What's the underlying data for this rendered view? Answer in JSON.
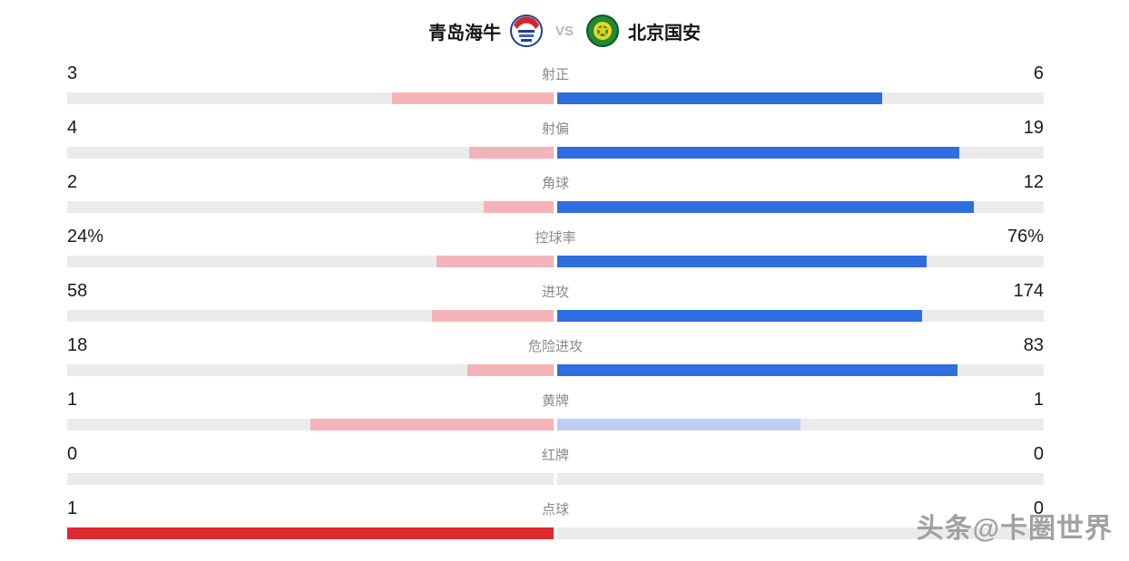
{
  "header": {
    "home_team": "青岛海牛",
    "away_team": "北京国安",
    "vs_label": "VS"
  },
  "watermark": "头条@卡圈世界",
  "colors": {
    "home_bar_pink": "#f4b3b8",
    "home_bar_red": "#df2b30",
    "away_bar_blue": "#2e6ede",
    "away_bar_light_blue": "#bfcdf5",
    "track_gray": "#ebebeb"
  },
  "chart_data": {
    "type": "bar",
    "title": "青岛海牛 VS 北京国安",
    "categories": [
      "射正",
      "射偏",
      "角球",
      "控球率",
      "进攻",
      "危险进攻",
      "黄牌",
      "红牌",
      "点球"
    ],
    "series": [
      {
        "name": "青岛海牛",
        "values": [
          3,
          4,
          2,
          "24%",
          58,
          18,
          1,
          0,
          1
        ]
      },
      {
        "name": "北京国安",
        "values": [
          6,
          19,
          12,
          "76%",
          174,
          83,
          1,
          0,
          0
        ]
      }
    ],
    "legend_position": "none",
    "grid": false,
    "note": "horizontal mirrored comparison bars from center; bar length proportional to share of row total within each half"
  },
  "stats": [
    {
      "label": "射正",
      "home": "3",
      "away": "6",
      "home_pct": 33.3,
      "away_pct": 66.7,
      "home_color": "#f4b3b8",
      "away_color": "#2e6ede"
    },
    {
      "label": "射偏",
      "home": "4",
      "away": "19",
      "home_pct": 17.4,
      "away_pct": 82.6,
      "home_color": "#f4b3b8",
      "away_color": "#2e6ede"
    },
    {
      "label": "角球",
      "home": "2",
      "away": "12",
      "home_pct": 14.3,
      "away_pct": 85.7,
      "home_color": "#f4b3b8",
      "away_color": "#2e6ede"
    },
    {
      "label": "控球率",
      "home": "24%",
      "away": "76%",
      "home_pct": 24,
      "away_pct": 76,
      "home_color": "#f4b3b8",
      "away_color": "#2e6ede"
    },
    {
      "label": "进攻",
      "home": "58",
      "away": "174",
      "home_pct": 25,
      "away_pct": 75,
      "home_color": "#f4b3b8",
      "away_color": "#2e6ede"
    },
    {
      "label": "危险进攻",
      "home": "18",
      "away": "83",
      "home_pct": 17.8,
      "away_pct": 82.2,
      "home_color": "#f4b3b8",
      "away_color": "#2e6ede"
    },
    {
      "label": "黄牌",
      "home": "1",
      "away": "1",
      "home_pct": 50,
      "away_pct": 50,
      "home_color": "#f4b3b8",
      "away_color": "#bfcdf5"
    },
    {
      "label": "红牌",
      "home": "0",
      "away": "0",
      "home_pct": 0,
      "away_pct": 0,
      "home_color": "#f4b3b8",
      "away_color": "#2e6ede"
    },
    {
      "label": "点球",
      "home": "1",
      "away": "0",
      "home_pct": 100,
      "away_pct": 0,
      "home_color": "#df2b30",
      "away_color": "#2e6ede"
    }
  ]
}
